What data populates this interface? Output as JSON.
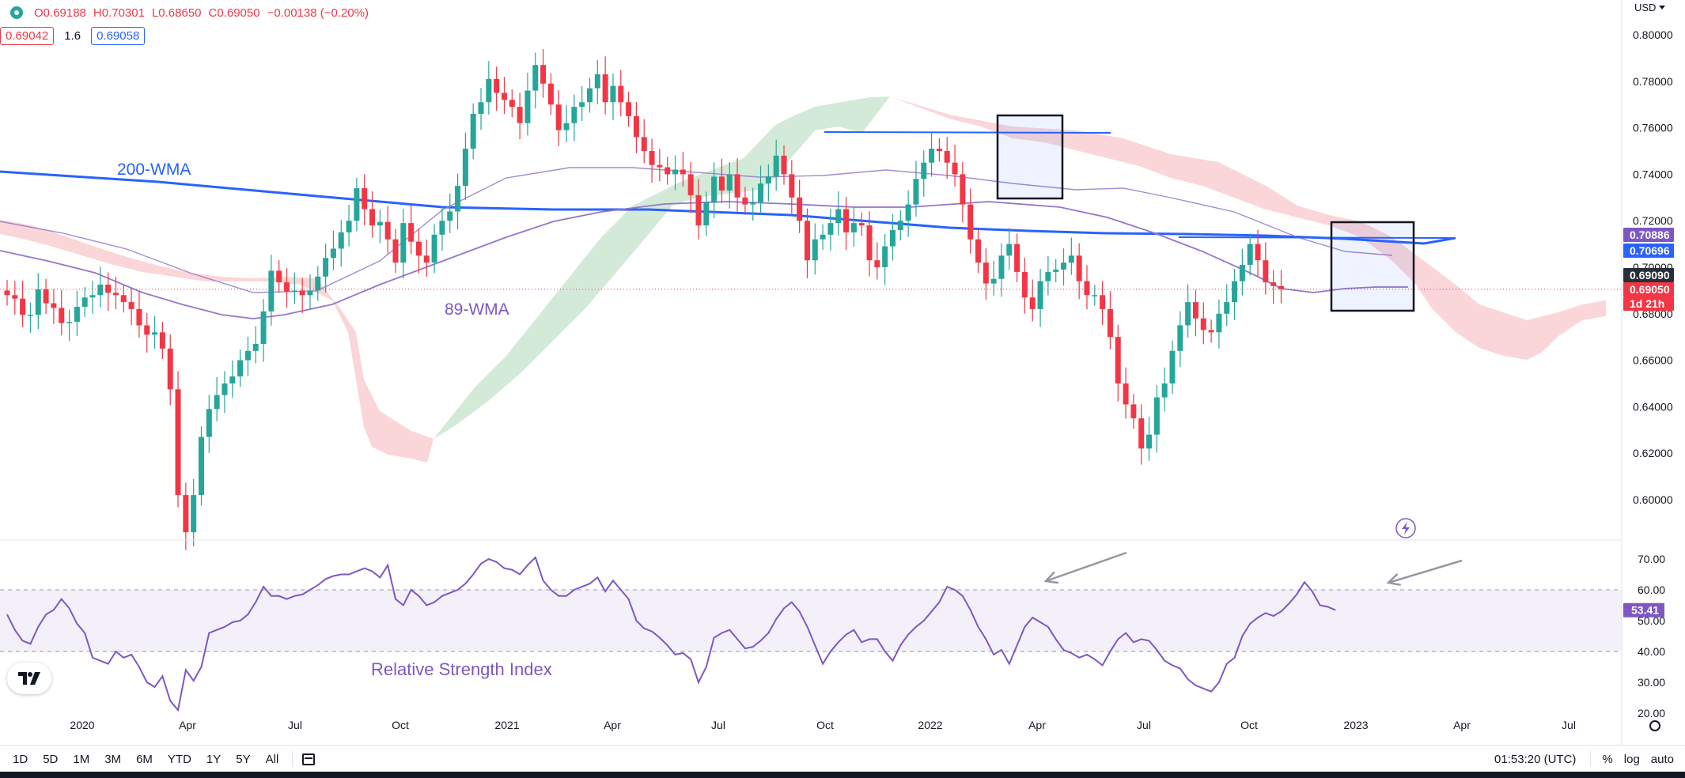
{
  "header": {
    "ohlc": {
      "open": "O0.69188",
      "high": "H0.70301",
      "low": "L0.68650",
      "close": "C0.69050",
      "change": "−0.00138 (−0.20%)"
    },
    "sell_price": "0.69042",
    "spread": "1.6",
    "buy_price": "0.69058",
    "currency": "USD"
  },
  "toolbar": {
    "timeframes": [
      "1D",
      "5D",
      "1M",
      "3M",
      "6M",
      "YTD",
      "1Y",
      "5Y",
      "All"
    ],
    "clock": "01:53:20 (UTC)",
    "percent_label": "%",
    "log_label": "log",
    "auto_label": "auto"
  },
  "chart_data": [
    {
      "type": "candlestick",
      "x_tick_labels": [
        "2020",
        "Apr",
        "Jul",
        "Oct",
        "2021",
        "Apr",
        "Jul",
        "Oct",
        "2022",
        "Apr",
        "Jul",
        "Oct",
        "2023",
        "Apr",
        "Jul"
      ],
      "y_tick_labels": [
        "0.80000",
        "0.78000",
        "0.76000",
        "0.74000",
        "0.72000",
        "0.70000",
        "0.68000",
        "0.66000",
        "0.64000",
        "0.62000",
        "0.60000"
      ],
      "ylim": [
        0.585,
        0.805
      ],
      "price_badges": [
        {
          "value": "0.70886",
          "color": "#7e57c2"
        },
        {
          "value": "0.70696",
          "color": "#2962ff"
        },
        {
          "value": "0.69090",
          "color": "#2a2e39"
        },
        {
          "value": "0.69050",
          "color": "#f23645"
        },
        {
          "value": "1d 21h",
          "color": "#f23645"
        }
      ],
      "annotations": [
        "200-WMA",
        "89-WMA"
      ],
      "close": [
        0.688,
        0.6865,
        0.6795,
        0.6795,
        0.6905,
        0.6845,
        0.6825,
        0.676,
        0.6765,
        0.683,
        0.687,
        0.688,
        0.6925,
        0.689,
        0.688,
        0.685,
        0.682,
        0.675,
        0.671,
        0.672,
        0.665,
        0.6475,
        0.602,
        0.586,
        0.602,
        0.627,
        0.639,
        0.645,
        0.65,
        0.653,
        0.66,
        0.664,
        0.667,
        0.681,
        0.6985,
        0.6935,
        0.6895,
        0.69,
        0.688,
        0.69,
        0.696,
        0.704,
        0.708,
        0.715,
        0.72,
        0.734,
        0.725,
        0.718,
        0.7195,
        0.712,
        0.702,
        0.719,
        0.711,
        0.705,
        0.702,
        0.714,
        0.72,
        0.724,
        0.735,
        0.751,
        0.766,
        0.771,
        0.781,
        0.775,
        0.772,
        0.769,
        0.762,
        0.776,
        0.787,
        0.779,
        0.77,
        0.759,
        0.762,
        0.769,
        0.771,
        0.777,
        0.783,
        0.771,
        0.778,
        0.771,
        0.765,
        0.756,
        0.75,
        0.744,
        0.743,
        0.74,
        0.742,
        0.74,
        0.731,
        0.718,
        0.728,
        0.739,
        0.733,
        0.74,
        0.73,
        0.727,
        0.728,
        0.736,
        0.739,
        0.748,
        0.74,
        0.73,
        0.72,
        0.703,
        0.712,
        0.714,
        0.719,
        0.725,
        0.715,
        0.719,
        0.718,
        0.703,
        0.7,
        0.709,
        0.716,
        0.72,
        0.727,
        0.738,
        0.745,
        0.751,
        0.75,
        0.745,
        0.74,
        0.727,
        0.712,
        0.702,
        0.693,
        0.695,
        0.705,
        0.71,
        0.698,
        0.687,
        0.682,
        0.694,
        0.698,
        0.699,
        0.702,
        0.705,
        0.694,
        0.688,
        0.688,
        0.682,
        0.67,
        0.65,
        0.641,
        0.635,
        0.622,
        0.628,
        0.644,
        0.65,
        0.664,
        0.675,
        0.685,
        0.678,
        0.673,
        0.672,
        0.68,
        0.685,
        0.694,
        0.701,
        0.71,
        0.703,
        0.6935,
        0.6919,
        0.6905
      ],
      "ichimoku_cloud_colors": {
        "bullish": "#cfe8d4",
        "bearish": "#fad1d4"
      },
      "series": [
        {
          "name": "200-WMA",
          "color": "#2962ff"
        },
        {
          "name": "89-WMA",
          "color": "#9575cd"
        }
      ]
    },
    {
      "type": "line",
      "title": "Relative Strength Index",
      "y_tick_labels": [
        "70.00",
        "60.00",
        "50.00",
        "40.00",
        "30.00",
        "20.00"
      ],
      "ylim": [
        20,
        73
      ],
      "band": [
        40,
        60
      ],
      "current_value": "53.41",
      "values": [
        52.0,
        47.0,
        43.5,
        42.5,
        48.0,
        52.0,
        53.5,
        57.0,
        54.0,
        49.0,
        46.0,
        38.0,
        37.0,
        36.0,
        40.0,
        38.0,
        39.0,
        35.0,
        30.0,
        28.5,
        32.0,
        24.0,
        21.0,
        34.0,
        30.5,
        35.0,
        46.0,
        47.0,
        48.0,
        49.5,
        50.0,
        52.0,
        56.0,
        61.0,
        58.0,
        58.0,
        57.0,
        58.0,
        58.5,
        60.0,
        61.5,
        63.5,
        64.5,
        65.0,
        65.0,
        66.0,
        67.0,
        66.0,
        64.0,
        68.0,
        57.0,
        55.0,
        60.0,
        58.0,
        55.0,
        56.0,
        58.0,
        59.0,
        60.0,
        62.0,
        65.0,
        68.5,
        70.0,
        69.0,
        67.0,
        66.5,
        65.0,
        68.0,
        70.5,
        63.0,
        60.0,
        58.0,
        58.0,
        60.0,
        61.0,
        62.0,
        64.0,
        59.5,
        63.0,
        60.0,
        57.0,
        50.0,
        47.5,
        46.5,
        44.5,
        42.0,
        39.0,
        39.5,
        37.5,
        30.0,
        35.0,
        44.5,
        46.0,
        47.0,
        44.0,
        41.0,
        41.5,
        43.5,
        46.0,
        50.5,
        54.0,
        56.0,
        53.0,
        48.0,
        42.0,
        36.0,
        40.0,
        43.0,
        45.5,
        47.0,
        43.0,
        44.0,
        44.0,
        40.0,
        37.0,
        42.0,
        45.5,
        48.0,
        50.0,
        53.0,
        56.0,
        61.0,
        60.0,
        58.0,
        53.5,
        48.0,
        44.0,
        39.0,
        40.5,
        36.0,
        42.0,
        48.0,
        51.0,
        49.5,
        48.0,
        44.0,
        40.5,
        39.5,
        38.0,
        39.0,
        37.5,
        35.5,
        40.0,
        44.0,
        46.0,
        43.0,
        44.0,
        43.5,
        40.5,
        37.0,
        35.5,
        34.5,
        31.0,
        29.0,
        28.0,
        27.0,
        30.0,
        36.0,
        38.0,
        45.0,
        49.0,
        51.0,
        52.5,
        51.5,
        53.0,
        55.5,
        58.5,
        62.5,
        59.5,
        55.0,
        54.5,
        53.41
      ]
    }
  ]
}
